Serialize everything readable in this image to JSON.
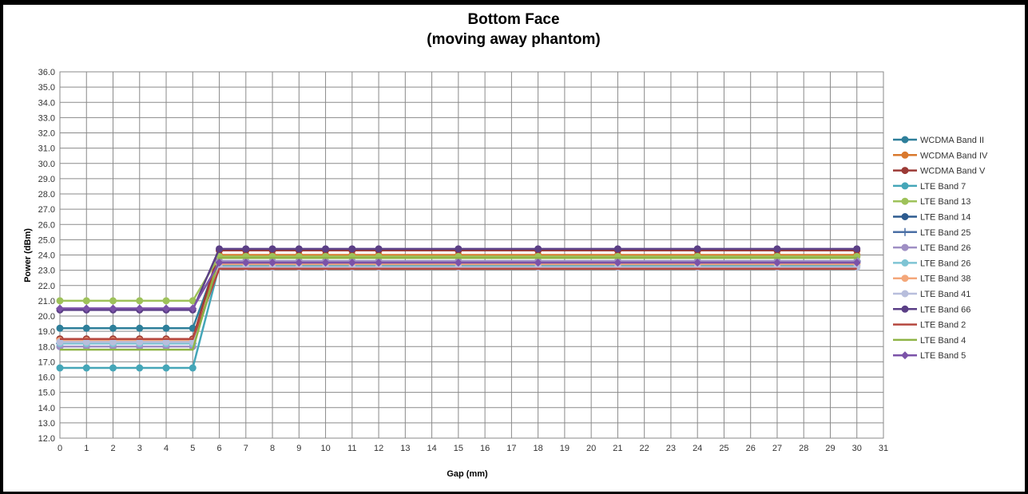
{
  "chart_data": {
    "type": "line",
    "title": "Bottom Face",
    "subtitle": "(moving away phantom)",
    "xlabel": "Gap (mm)",
    "ylabel": "Power (dBm)",
    "xlim": [
      0,
      31
    ],
    "ylim": [
      12.0,
      36.0
    ],
    "x_ticks": [
      0,
      1,
      2,
      3,
      4,
      5,
      6,
      7,
      8,
      9,
      10,
      11,
      12,
      13,
      14,
      15,
      16,
      17,
      18,
      19,
      20,
      21,
      22,
      23,
      24,
      25,
      26,
      27,
      28,
      29,
      30,
      31
    ],
    "y_ticks": [
      "12.0",
      "13.0",
      "14.0",
      "15.0",
      "16.0",
      "17.0",
      "18.0",
      "19.0",
      "20.0",
      "21.0",
      "22.0",
      "23.0",
      "24.0",
      "25.0",
      "26.0",
      "27.0",
      "28.0",
      "29.0",
      "30.0",
      "31.0",
      "32.0",
      "33.0",
      "34.0",
      "35.0",
      "36.0"
    ],
    "grid": true,
    "legend_position": "right",
    "x": [
      0,
      1,
      2,
      3,
      4,
      5,
      6,
      7,
      8,
      9,
      10,
      11,
      12,
      15,
      18,
      21,
      24,
      27,
      30
    ],
    "series": [
      {
        "name": "WCDMA Band II",
        "color": "#2e7f9a",
        "marker": "circle",
        "values": [
          19.2,
          19.2,
          19.2,
          19.2,
          19.2,
          19.2,
          23.9,
          23.9,
          23.9,
          23.9,
          23.9,
          23.9,
          23.9,
          23.9,
          23.9,
          23.9,
          23.9,
          23.9,
          23.9
        ]
      },
      {
        "name": "WCDMA Band IV",
        "color": "#d9792e",
        "marker": "circle",
        "values": [
          18.5,
          18.5,
          18.5,
          18.5,
          18.5,
          18.5,
          24.0,
          24.0,
          24.0,
          24.0,
          24.0,
          24.0,
          24.0,
          24.0,
          24.0,
          24.0,
          24.0,
          24.0,
          24.0
        ]
      },
      {
        "name": "WCDMA Band V",
        "color": "#9b3a36",
        "marker": "circle",
        "values": [
          18.5,
          18.5,
          18.5,
          18.5,
          18.5,
          18.5,
          24.3,
          24.3,
          24.3,
          24.3,
          24.3,
          24.3,
          24.3,
          24.3,
          24.3,
          24.3,
          24.3,
          24.3,
          24.3
        ]
      },
      {
        "name": "LTE Band 7",
        "color": "#45a6b8",
        "marker": "circle",
        "values": [
          16.6,
          16.6,
          16.6,
          16.6,
          16.6,
          16.6,
          23.3,
          23.3,
          23.3,
          23.3,
          23.3,
          23.3,
          23.3,
          23.3,
          23.3,
          23.3,
          23.3,
          23.3,
          23.3
        ]
      },
      {
        "name": "LTE Band 13",
        "color": "#9ec25a",
        "marker": "circle",
        "values": [
          21.0,
          21.0,
          21.0,
          21.0,
          21.0,
          21.0,
          23.9,
          23.9,
          23.9,
          23.9,
          23.9,
          23.9,
          23.9,
          23.9,
          23.9,
          23.9,
          23.9,
          23.9,
          23.9
        ]
      },
      {
        "name": "LTE Band 14",
        "color": "#2d5b8f",
        "marker": "circle",
        "values": [
          18.0,
          18.0,
          18.0,
          18.0,
          18.0,
          18.0,
          23.5,
          23.5,
          23.5,
          23.5,
          23.5,
          23.5,
          23.5,
          23.5,
          23.5,
          23.5,
          23.5,
          23.5,
          23.5
        ]
      },
      {
        "name": "LTE Band 25",
        "color": "#4a6fa5",
        "marker": "plus",
        "values": [
          18.2,
          18.2,
          18.2,
          18.2,
          18.2,
          18.2,
          23.6,
          23.6,
          23.6,
          23.6,
          23.6,
          23.6,
          23.6,
          23.6,
          23.6,
          23.6,
          23.6,
          23.6,
          23.6
        ]
      },
      {
        "name": "LTE Band 26",
        "color": "#9f8fc4",
        "marker": "circle",
        "values": [
          18.0,
          18.0,
          18.0,
          18.0,
          18.0,
          18.0,
          23.6,
          23.6,
          23.6,
          23.6,
          23.6,
          23.6,
          23.6,
          23.6,
          23.6,
          23.6,
          23.6,
          23.6,
          23.6
        ]
      },
      {
        "name": "LTE Band 26",
        "color": "#7ec4d4",
        "marker": "circle",
        "values": [
          18.2,
          18.2,
          18.2,
          18.2,
          18.2,
          18.2,
          23.4,
          23.4,
          23.4,
          23.4,
          23.4,
          23.4,
          23.4,
          23.4,
          23.4,
          23.4,
          23.4,
          23.4,
          23.4
        ]
      },
      {
        "name": "LTE Band 38",
        "color": "#f4a77a",
        "marker": "circle",
        "values": [
          18.4,
          18.4,
          18.4,
          18.4,
          18.4,
          18.4,
          23.4,
          23.4,
          23.4,
          23.4,
          23.4,
          23.4,
          23.4,
          23.4,
          23.4,
          23.4,
          23.4,
          23.4,
          23.4
        ]
      },
      {
        "name": "LTE Band 41",
        "color": "#b8bedc",
        "marker": "circle",
        "values": [
          18.3,
          18.3,
          18.3,
          18.3,
          18.3,
          18.3,
          23.2,
          23.2,
          23.2,
          23.2,
          23.2,
          23.2,
          23.2,
          23.2,
          23.2,
          23.2,
          23.2,
          23.2,
          23.2
        ]
      },
      {
        "name": "LTE Band 66",
        "color": "#5b3f86",
        "marker": "circle",
        "values": [
          20.4,
          20.4,
          20.4,
          20.4,
          20.4,
          20.4,
          24.4,
          24.4,
          24.4,
          24.4,
          24.4,
          24.4,
          24.4,
          24.4,
          24.4,
          24.4,
          24.4,
          24.4,
          24.4
        ]
      },
      {
        "name": "LTE Band 2",
        "color": "#b5473f",
        "marker": "none",
        "values": [
          18.5,
          18.5,
          18.5,
          18.5,
          18.5,
          18.5,
          23.1,
          23.1,
          23.1,
          23.1,
          23.1,
          23.1,
          23.1,
          23.1,
          23.1,
          23.1,
          23.1,
          23.1,
          23.1
        ]
      },
      {
        "name": "LTE Band 4",
        "color": "#8fb446",
        "marker": "none",
        "values": [
          17.8,
          17.8,
          17.8,
          17.8,
          17.8,
          17.8,
          23.8,
          23.8,
          23.8,
          23.8,
          23.8,
          23.8,
          23.8,
          23.8,
          23.8,
          23.8,
          23.8,
          23.8,
          23.8
        ]
      },
      {
        "name": "LTE Band 5",
        "color": "#7b52a8",
        "marker": "diamond",
        "values": [
          20.5,
          20.5,
          20.5,
          20.5,
          20.5,
          20.5,
          23.5,
          23.5,
          23.5,
          23.5,
          23.5,
          23.5,
          23.5,
          23.5,
          23.5,
          23.5,
          23.5,
          23.5,
          23.5
        ]
      }
    ]
  }
}
